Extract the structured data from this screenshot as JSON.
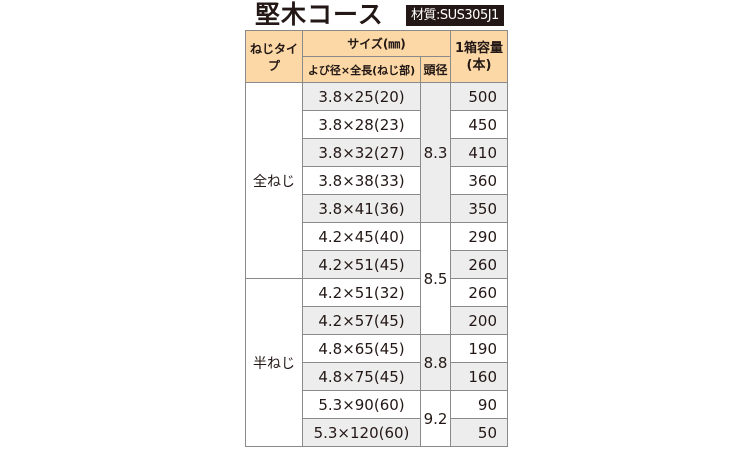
{
  "title": "堅木コース",
  "material": "材質:SUS305J1",
  "header": {
    "type": "ねじタイプ",
    "size": "サイズ(㎜)",
    "diameter_length": "よび径×全長(ねじ部)",
    "head": "頭径",
    "qty": "1箱容量\n(本)"
  },
  "rows": [
    {
      "size": "3.8×25(20)",
      "qty": "500"
    },
    {
      "size": "3.8×28(23)",
      "qty": "450"
    },
    {
      "size": "3.8×32(27)",
      "qty": "410"
    },
    {
      "size": "3.8×38(33)",
      "qty": "360"
    },
    {
      "size": "3.8×41(36)",
      "qty": "350"
    },
    {
      "size": "4.2×45(40)",
      "qty": "290"
    },
    {
      "size": "4.2×51(45)",
      "qty": "260"
    },
    {
      "size": "4.2×51(32)",
      "qty": "260"
    },
    {
      "size": "4.2×57(45)",
      "qty": "200"
    },
    {
      "size": "4.8×65(45)",
      "qty": "190"
    },
    {
      "size": "4.8×75(45)",
      "qty": "160"
    },
    {
      "size": "5.3×90(60)",
      "qty": "90"
    },
    {
      "size": "5.3×120(60)",
      "qty": "50"
    }
  ],
  "types": [
    "全ねじ",
    "半ねじ"
  ],
  "heads": [
    "8.3",
    "8.5",
    "8.8",
    "9.2"
  ],
  "colors": {
    "header_bg": "#fbd8a6",
    "row_gray": "#ededed",
    "badge_bg": "#231815"
  }
}
